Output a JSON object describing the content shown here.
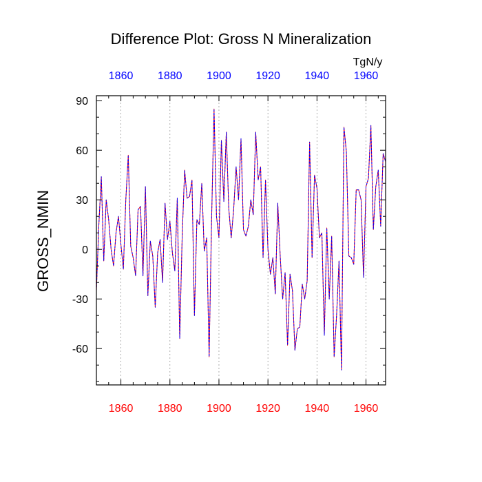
{
  "chart_data": {
    "type": "line",
    "title": "Difference Plot: Gross N Mineralization",
    "ylabel": "GROSS_NMIN",
    "units": "TgN/y",
    "xlim": [
      1850,
      1968
    ],
    "ylim": [
      -82,
      93
    ],
    "yticks": [
      90,
      60,
      30,
      0,
      -30,
      -60
    ],
    "ytick_labels": [
      "90",
      "60",
      "30",
      "0",
      "-30",
      "-60"
    ],
    "xticks": [
      1860,
      1880,
      1900,
      1920,
      1940,
      1960
    ],
    "xtick_labels_top": [
      "1860",
      "1880",
      "1900",
      "1920",
      "1940",
      "1960"
    ],
    "xtick_labels_bottom": [
      "1860",
      "1880",
      "1900",
      "1920",
      "1940",
      "1960"
    ],
    "grid": "vertical dotted at major x ticks",
    "top_axis_color": "#0000ff",
    "bottom_axis_color": "#ff0000",
    "series": [
      {
        "name": "series-red",
        "color": "#ff0000",
        "style": "solid",
        "x": [
          1850,
          1851,
          1852,
          1853,
          1854,
          1855,
          1856,
          1857,
          1858,
          1859,
          1860,
          1861,
          1862,
          1863,
          1864,
          1865,
          1866,
          1867,
          1868,
          1869,
          1870,
          1871,
          1872,
          1873,
          1874,
          1875,
          1876,
          1877,
          1878,
          1879,
          1880,
          1881,
          1882,
          1883,
          1884,
          1885,
          1886,
          1887,
          1888,
          1889,
          1890,
          1891,
          1892,
          1893,
          1894,
          1895,
          1896,
          1897,
          1898,
          1899,
          1900,
          1901,
          1902,
          1903,
          1904,
          1905,
          1906,
          1907,
          1908,
          1909,
          1910,
          1911,
          1912,
          1913,
          1914,
          1915,
          1916,
          1917,
          1918,
          1919,
          1920,
          1921,
          1922,
          1923,
          1924,
          1925,
          1926,
          1927,
          1928,
          1929,
          1930,
          1931,
          1932,
          1933,
          1934,
          1935,
          1936,
          1937,
          1938,
          1939,
          1940,
          1941,
          1942,
          1943,
          1944,
          1945,
          1946,
          1947,
          1948,
          1949,
          1950,
          1951,
          1952,
          1953,
          1954,
          1955,
          1956,
          1957,
          1958,
          1959,
          1960,
          1961,
          1962,
          1963,
          1964,
          1965,
          1966,
          1967,
          1968
        ],
        "values": [
          -25,
          15,
          44,
          -7,
          30,
          18,
          0,
          -10,
          10,
          20,
          3,
          -12,
          30,
          57,
          2,
          -5,
          -16,
          24,
          26,
          -16,
          38,
          -28,
          5,
          -4,
          -35,
          -2,
          6,
          -20,
          28,
          6,
          17,
          -2,
          -13,
          31,
          -54,
          8,
          48,
          31,
          32,
          42,
          -40,
          18,
          15,
          40,
          -1,
          7,
          -65,
          18,
          85,
          20,
          7,
          66,
          29,
          71,
          25,
          7,
          24,
          50,
          30,
          67,
          12,
          8,
          14,
          30,
          21,
          71,
          42,
          50,
          -5,
          42,
          0,
          -15,
          -5,
          -27,
          28,
          -4,
          -30,
          -14,
          -58,
          -15,
          -25,
          -61,
          -48,
          -47,
          -21,
          -30,
          -19,
          65,
          -5,
          45,
          37,
          7,
          10,
          -52,
          13,
          -30,
          8,
          -65,
          -40,
          -7,
          -73,
          74,
          59,
          -4,
          -5,
          -9,
          36,
          36,
          30,
          -17,
          38,
          43,
          75,
          12,
          38,
          48,
          14,
          58,
          53
        ]
      },
      {
        "name": "series-blue",
        "color": "#0000ff",
        "style": "dashed",
        "x": [
          1850,
          1851,
          1852,
          1853,
          1854,
          1855,
          1856,
          1857,
          1858,
          1859,
          1860,
          1861,
          1862,
          1863,
          1864,
          1865,
          1866,
          1867,
          1868,
          1869,
          1870,
          1871,
          1872,
          1873,
          1874,
          1875,
          1876,
          1877,
          1878,
          1879,
          1880,
          1881,
          1882,
          1883,
          1884,
          1885,
          1886,
          1887,
          1888,
          1889,
          1890,
          1891,
          1892,
          1893,
          1894,
          1895,
          1896,
          1897,
          1898,
          1899,
          1900,
          1901,
          1902,
          1903,
          1904,
          1905,
          1906,
          1907,
          1908,
          1909,
          1910,
          1911,
          1912,
          1913,
          1914,
          1915,
          1916,
          1917,
          1918,
          1919,
          1920,
          1921,
          1922,
          1923,
          1924,
          1925,
          1926,
          1927,
          1928,
          1929,
          1930,
          1931,
          1932,
          1933,
          1934,
          1935,
          1936,
          1937,
          1938,
          1939,
          1940,
          1941,
          1942,
          1943,
          1944,
          1945,
          1946,
          1947,
          1948,
          1949,
          1950,
          1951,
          1952,
          1953,
          1954,
          1955,
          1956,
          1957,
          1958,
          1959,
          1960,
          1961,
          1962,
          1963,
          1964,
          1965,
          1966,
          1967,
          1968
        ],
        "values": [
          -25,
          15,
          44,
          -7,
          30,
          18,
          0,
          -10,
          10,
          20,
          3,
          -12,
          30,
          57,
          2,
          -5,
          -16,
          24,
          26,
          -16,
          38,
          -28,
          5,
          -4,
          -35,
          -2,
          6,
          -20,
          28,
          6,
          17,
          -2,
          -13,
          31,
          -54,
          8,
          48,
          31,
          32,
          42,
          -40,
          18,
          15,
          40,
          -1,
          7,
          -65,
          18,
          85,
          20,
          7,
          66,
          29,
          71,
          25,
          7,
          24,
          50,
          30,
          67,
          12,
          8,
          14,
          30,
          21,
          71,
          42,
          50,
          -5,
          42,
          0,
          -15,
          -5,
          -27,
          28,
          -4,
          -30,
          -14,
          -58,
          -15,
          -25,
          -61,
          -48,
          -47,
          -21,
          -30,
          -19,
          65,
          -5,
          45,
          37,
          7,
          10,
          -52,
          13,
          -30,
          8,
          -65,
          -40,
          -7,
          -73,
          74,
          59,
          -4,
          -5,
          -9,
          36,
          36,
          30,
          -17,
          38,
          43,
          75,
          12,
          38,
          48,
          14,
          58,
          53
        ]
      }
    ]
  }
}
